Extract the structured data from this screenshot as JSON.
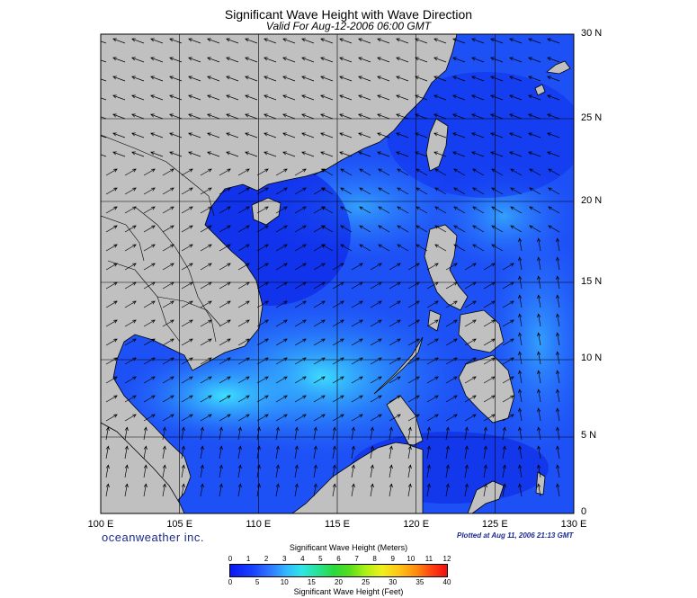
{
  "title": "Significant Wave Height with Wave Direction",
  "subtitle": "Valid For Aug-12-2006 06:00 GMT",
  "lon_labels": [
    "100 E",
    "105 E",
    "110 E",
    "115 E",
    "120 E",
    "125 E",
    "130 E"
  ],
  "lat_labels": [
    "30 N",
    "25 N",
    "20 N",
    "15 N",
    "10 N",
    "5 N",
    "0"
  ],
  "brand": "oceanweather inc.",
  "plotted": "Plotted at Aug 11, 2006 21:13 GMT",
  "legend": {
    "meters_title": "Significant Wave Height (Meters)",
    "feet_title": "Significant Wave Height (Feet)",
    "meter_ticks": [
      "0",
      "1",
      "2",
      "3",
      "4",
      "5",
      "6",
      "7",
      "8",
      "9",
      "10",
      "11",
      "12"
    ],
    "feet_ticks": [
      "0",
      "5",
      "10",
      "15",
      "20",
      "25",
      "30",
      "35",
      "40"
    ]
  },
  "colors": {
    "land": "#c0c0c0",
    "ocean_deep": "#0a1ef0",
    "ocean_mid": "#2a6cff",
    "ocean_high": "#3fd6ff",
    "grid": "#000000",
    "arrow": "#000000"
  },
  "extent": {
    "lon": [
      100,
      130
    ],
    "lat": [
      0,
      30
    ]
  }
}
